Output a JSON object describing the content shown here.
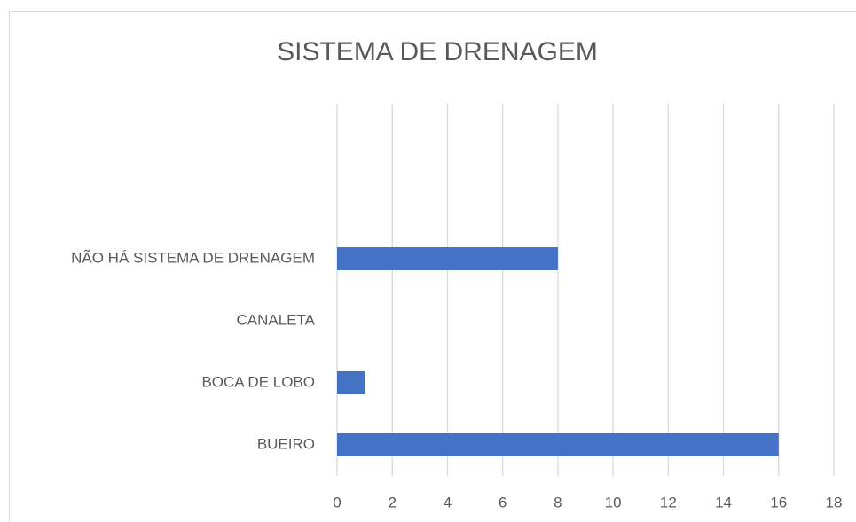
{
  "chart_data": {
    "type": "barh",
    "title": "SISTEMA DE DRENAGEM",
    "categories": [
      "BUEIRO",
      "BOCA DE LOBO",
      "CANALETA",
      "NÃO HÁ SISTEMA DE DRENAGEM",
      null,
      null
    ],
    "values": [
      16,
      1,
      0,
      8,
      null,
      null
    ],
    "color": "#4472c4",
    "xlim": [
      0,
      18
    ],
    "xticks": [
      0,
      2,
      4,
      6,
      8,
      10,
      12,
      14,
      16,
      18
    ],
    "grid": true
  }
}
